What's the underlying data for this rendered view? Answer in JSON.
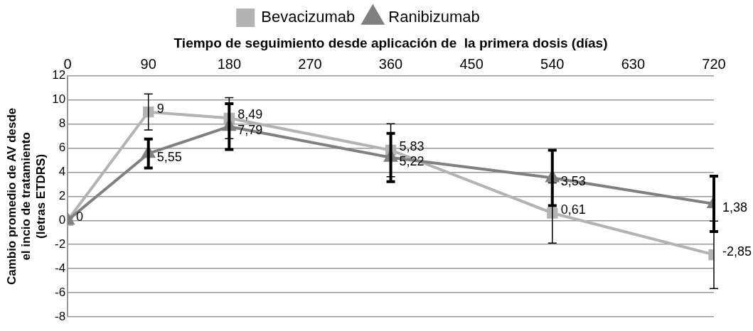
{
  "chart_data": {
    "type": "line",
    "xlabel": "Tiempo de seguimiento desde aplicación de  la primera dosis (días)",
    "ylabel": "Cambio promedio de AV desde el incio de tratamiento (letras ETDRS)",
    "x": [
      0,
      90,
      180,
      360,
      540,
      720
    ],
    "series": [
      {
        "name": "Bevacizumab",
        "color": "#b3b3b3",
        "marker": "square",
        "values": [
          0,
          9,
          8.49,
          5.83,
          0.61,
          -2.85
        ],
        "value_labels": [
          "0",
          "9",
          "8,49",
          "5,83",
          "0,61",
          "-2,85"
        ],
        "errors": [
          null,
          1.5,
          1.7,
          2.2,
          2.5,
          2.8
        ]
      },
      {
        "name": "Ranibizumab",
        "color": "#808080",
        "marker": "triangle",
        "values": [
          0,
          5.55,
          7.79,
          5.22,
          3.53,
          1.38
        ],
        "value_labels": [
          null,
          "5,55",
          "7,79",
          "5,22",
          "3,53",
          "1,38"
        ],
        "errors": [
          null,
          1.2,
          1.9,
          2.0,
          2.3,
          2.3
        ]
      }
    ],
    "xlim": [
      0,
      720
    ],
    "xticks": [
      0,
      90,
      180,
      270,
      360,
      450,
      540,
      630,
      720
    ],
    "ylim": [
      -8,
      12
    ],
    "yticks": [
      -8,
      -6,
      -4,
      -2,
      0,
      2,
      4,
      6,
      8,
      10,
      12
    ],
    "grid": "y",
    "legend": "top",
    "line_style": "solid"
  }
}
